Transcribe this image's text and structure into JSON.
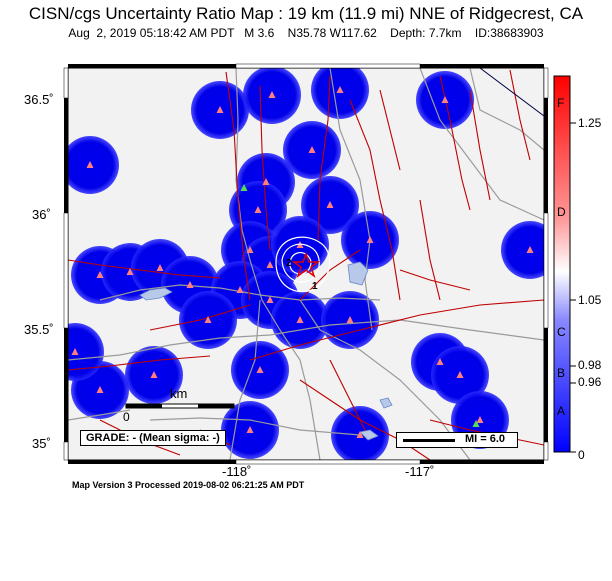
{
  "title": "CISN/cgs Uncertainty Ratio Map : 19 km (11.9 mi) NNE of Ridgecrest, CA",
  "subtitle": "Aug  2, 2019 05:18:42 AM PDT   M 3.6    N35.78 W117.62    Depth: 7.7km    ID:38683903",
  "footer": "Map Version 3 Processed 2019-08-02 06:21:25 AM PDT",
  "grade_label": "GRADE: - (Mean sigma: -)",
  "mi_label": "MI = 6.0",
  "scalebar": {
    "unit": "km",
    "zero": "0",
    "end": ""
  },
  "lat_labels": [
    "36.5˚",
    "36˚",
    "35.5˚",
    "35˚"
  ],
  "lon_labels": [
    "-118˚",
    "-117˚"
  ],
  "colorbar": {
    "grades": [
      "F",
      "D",
      "C",
      "B",
      "A"
    ],
    "values": [
      "1.25",
      "1.05",
      "0.98",
      "0.96",
      "0"
    ]
  },
  "contour_labels": [
    "2",
    "1"
  ],
  "colors": {
    "station_disk": "#0000ee",
    "station_triangle": "#ff7f7f",
    "station_triangle_alt": "#55dd55",
    "fault": "#c00000",
    "road": "#999999",
    "epicenter": "#e00000",
    "background": "#f2f2f2"
  }
}
